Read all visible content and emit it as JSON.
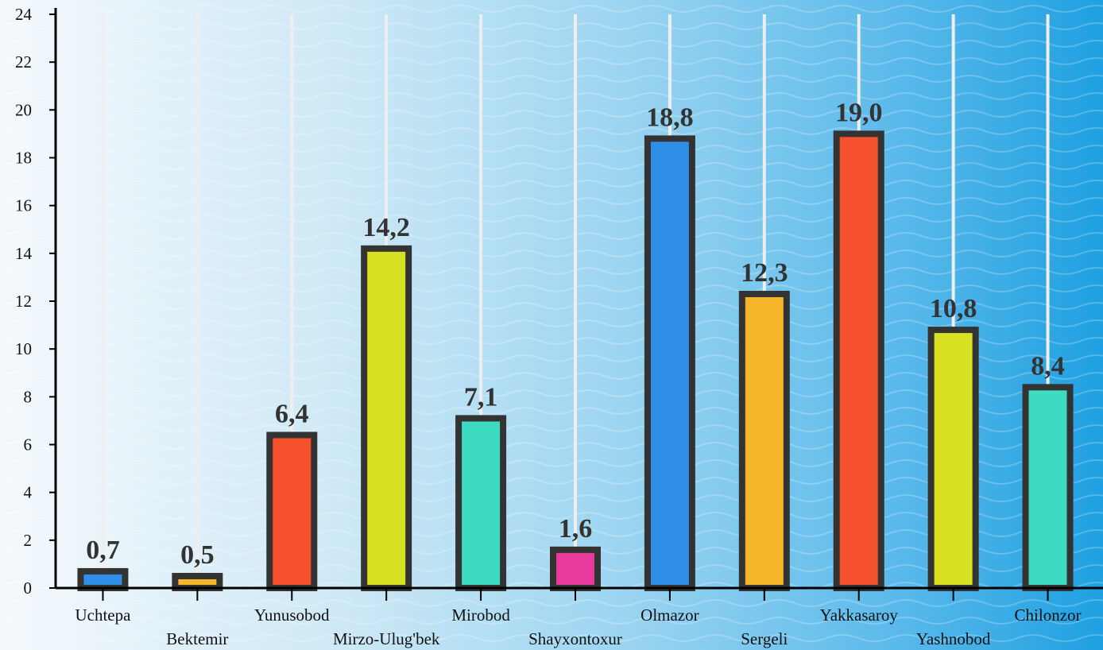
{
  "chart_data": {
    "type": "bar",
    "categories": [
      "Uchtepa",
      "Bektemir",
      "Yunusobod",
      "Mirzo-Ulug'bek",
      "Mirobod",
      "Shayxontoxur",
      "Olmazor",
      "Sergeli",
      "Yakkasaroy",
      "Yashnobod",
      "Chilonzor"
    ],
    "values": [
      0.7,
      0.5,
      6.4,
      14.2,
      7.1,
      1.6,
      18.8,
      12.3,
      19.0,
      10.8,
      8.4
    ],
    "value_labels": [
      "0,7",
      "0,5",
      "6,4",
      "14,2",
      "7,1",
      "1,6",
      "18,8",
      "12,3",
      "19,0",
      "10,8",
      "8,4"
    ],
    "colors": [
      "#2f8fe6",
      "#f5b62b",
      "#f6512d",
      "#d8e022",
      "#3ddcc2",
      "#e83a9c",
      "#2f8fe6",
      "#f5b62b",
      "#f6512d",
      "#d8e022",
      "#3ddcc2"
    ],
    "border_color": "#333333",
    "title": "",
    "xlabel": "",
    "ylabel": "",
    "ylim": [
      0,
      24
    ],
    "yticks": [
      0,
      2,
      4,
      6,
      8,
      10,
      12,
      14,
      16,
      18,
      20,
      22,
      24
    ],
    "grid": "vertical",
    "legend": "none"
  }
}
